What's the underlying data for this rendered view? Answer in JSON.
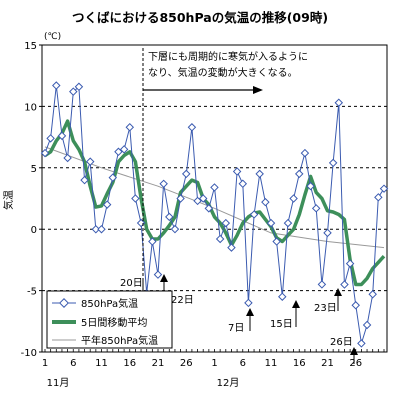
{
  "chart_data": {
    "type": "line",
    "title": "つくばにおける850hPaの気温の推移(09時)",
    "ylabel": "気温",
    "yunit": "(℃)",
    "ylim": [
      -10,
      15
    ],
    "yticks": [
      "15",
      "10",
      "5",
      "0",
      "-5",
      "-10"
    ],
    "xlim": [
      1,
      61
    ],
    "xticks": [
      "1",
      "6",
      "11",
      "16",
      "21",
      "26",
      "1",
      "6",
      "11",
      "16",
      "21",
      "26"
    ],
    "month_labels": [
      "11月",
      "12月"
    ],
    "grid": "dashed horizontal at 5-degree steps",
    "annotation": {
      "line1": "下層にも周期的に寒気が入るように",
      "line2": "なり、気温の変動が大きくなる。"
    },
    "callouts": [
      "20日",
      "22日",
      "7日",
      "15日",
      "23日",
      "26日"
    ],
    "legend": {
      "position": "bottom-left",
      "items": [
        "850hPa気温",
        "5日間移動平均",
        "平年850hPa気温"
      ]
    },
    "colors": {
      "daily": "#3b5bb0",
      "moving_average": "#3d8f5a",
      "normal": "#999999"
    },
    "series": [
      {
        "name": "850hPa気温",
        "x": [
          1,
          2,
          3,
          4,
          5,
          6,
          7,
          8,
          9,
          10,
          11,
          12,
          13,
          14,
          15,
          16,
          17,
          18,
          19,
          20,
          21,
          22,
          23,
          24,
          25,
          26,
          27,
          28,
          29,
          30,
          31,
          32,
          33,
          34,
          35,
          36,
          37,
          38,
          39,
          40,
          41,
          42,
          43,
          44,
          45,
          46,
          47,
          48,
          49,
          50,
          51,
          52,
          53,
          54,
          55,
          56,
          57,
          58,
          59,
          60,
          61
        ],
        "values": [
          6.2,
          7.4,
          11.7,
          7.6,
          5.8,
          11.2,
          11.6,
          4.0,
          5.5,
          0.0,
          0.0,
          2.0,
          4.2,
          6.3,
          6.5,
          8.3,
          2.5,
          0.5,
          -5.2,
          -1.0,
          -3.7,
          3.7,
          1.0,
          0.0,
          2.5,
          4.5,
          8.3,
          2.3,
          2.5,
          1.7,
          3.4,
          -0.8,
          0.5,
          -1.5,
          4.7,
          3.7,
          -6.0,
          1.2,
          4.5,
          2.2,
          0.5,
          -1.0,
          -5.5,
          0.5,
          2.5,
          4.5,
          6.2,
          3.5,
          1.7,
          -4.5,
          -0.3,
          5.4,
          10.3,
          -4.5,
          -2.8,
          -6.2,
          -9.3,
          -7.8,
          -5.3,
          2.6,
          3.3
        ]
      },
      {
        "name": "5日間移動平均",
        "x": [
          1,
          2,
          3,
          4,
          5,
          6,
          7,
          8,
          9,
          10,
          11,
          12,
          13,
          14,
          15,
          16,
          17,
          18,
          19,
          20,
          21,
          22,
          23,
          24,
          25,
          26,
          27,
          28,
          29,
          30,
          31,
          32,
          33,
          34,
          35,
          36,
          37,
          38,
          39,
          40,
          41,
          42,
          43,
          44,
          45,
          46,
          47,
          48,
          49,
          50,
          51,
          52,
          53,
          54,
          55,
          56,
          57,
          58,
          59,
          60,
          61
        ],
        "values": [
          6.0,
          6.3,
          7.2,
          7.8,
          8.8,
          7.2,
          6.5,
          5.5,
          3.5,
          1.8,
          1.9,
          2.9,
          3.8,
          5.5,
          6.0,
          6.3,
          5.5,
          2.5,
          0.0,
          -0.8,
          -0.8,
          -0.3,
          0.3,
          1.0,
          3.0,
          3.5,
          4.0,
          3.8,
          2.5,
          2.0,
          1.0,
          0.5,
          -0.3,
          -1.3,
          -0.5,
          0.5,
          1.0,
          1.3,
          1.4,
          0.8,
          0.2,
          -0.7,
          -1.0,
          -0.5,
          0.0,
          1.2,
          2.8,
          4.3,
          3.0,
          2.5,
          1.5,
          1.4,
          1.2,
          0.8,
          -2.5,
          -4.5,
          -4.5,
          -4.0,
          -3.2,
          -2.7,
          -2.2
        ]
      },
      {
        "name": "平年850hPa気温",
        "x": [
          1,
          11,
          21,
          31,
          41,
          51,
          61
        ],
        "values": [
          6.7,
          5.0,
          3.5,
          1.7,
          -0.3,
          -1.0,
          -1.5
        ]
      }
    ]
  }
}
